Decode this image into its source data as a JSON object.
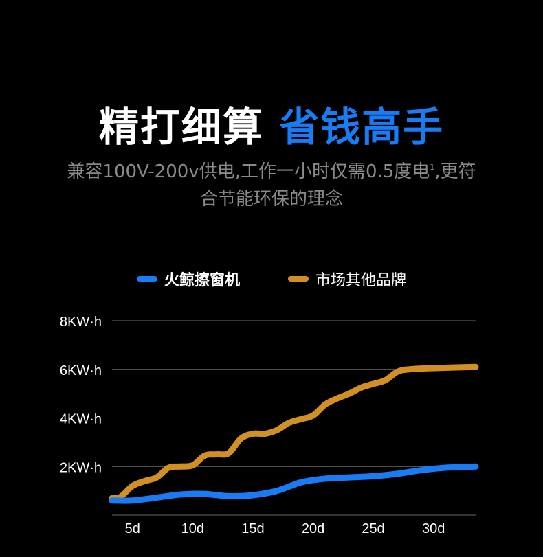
{
  "header": {
    "title_white": "精打细算",
    "title_blue": "省钱高手",
    "subtitle_line1": "兼容100V-200v供电,工作一小时仅需0.5度电",
    "superscript": "1",
    "subtitle_line1_end": ",更符",
    "subtitle_line2": "合节能环保的理念"
  },
  "colors": {
    "accent": "#1a7cf5",
    "orange": "#d18f24",
    "grid": "#6a6a6a"
  },
  "chart_data": {
    "type": "line",
    "title": "",
    "xlabel": "",
    "ylabel": "",
    "xlim": [
      3.3,
      33.5
    ],
    "ylim": [
      0,
      8
    ],
    "grid": true,
    "legend_position": "top-center",
    "x_ticks": [
      5,
      10,
      15,
      20,
      25,
      30
    ],
    "x_tick_labels": [
      "5d",
      "10d",
      "15d",
      "20d",
      "25d",
      "30d"
    ],
    "y_ticks": [
      2,
      4,
      6,
      8
    ],
    "y_tick_labels": [
      "2KW·h",
      "4KW·h",
      "6KW·h",
      "8KW·h"
    ],
    "series": [
      {
        "name": "火鲸擦窗机",
        "color": "#1a7cf5",
        "x": [
          3.3,
          5,
          7,
          9,
          11,
          13,
          15,
          17,
          19,
          21,
          23,
          25,
          27,
          29,
          31,
          33.5
        ],
        "y": [
          0.6,
          0.6,
          0.72,
          0.85,
          0.87,
          0.78,
          0.82,
          1.0,
          1.35,
          1.5,
          1.55,
          1.6,
          1.7,
          1.85,
          1.95,
          2.0
        ]
      },
      {
        "name": "市场其他品牌",
        "color": "#d18f24",
        "x": [
          3.3,
          4,
          5,
          6,
          7,
          8,
          9,
          10,
          11,
          12,
          13,
          14,
          15,
          16,
          17,
          18,
          19,
          20,
          21,
          22,
          23,
          24,
          25,
          26,
          27,
          28,
          30,
          33.5
        ],
        "y": [
          0.7,
          0.75,
          1.2,
          1.4,
          1.55,
          1.95,
          2.0,
          2.05,
          2.45,
          2.5,
          2.55,
          3.15,
          3.35,
          3.35,
          3.5,
          3.8,
          3.95,
          4.1,
          4.55,
          4.8,
          5.0,
          5.25,
          5.4,
          5.55,
          5.9,
          6.0,
          6.05,
          6.1
        ]
      }
    ]
  }
}
